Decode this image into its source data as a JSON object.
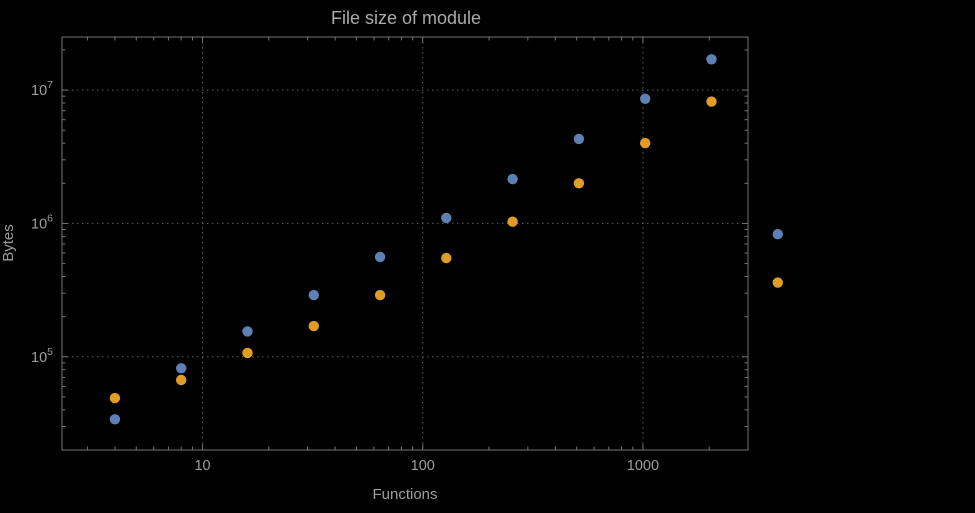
{
  "chart_data": {
    "type": "scatter",
    "title": "File size of module",
    "xlabel": "Functions",
    "ylabel": "Bytes",
    "x_scale": "log",
    "y_scale": "log",
    "xlim": [
      2.3,
      3000
    ],
    "ylim": [
      20000,
      25000000
    ],
    "grid": "dotted",
    "legend": "none",
    "colors": {
      "grid": "#5f5f5f",
      "frame": "#747474",
      "text": "#9e9e9e",
      "background": "#000000",
      "series_blue": "#5E81B5",
      "series_orange": "#E19C24"
    },
    "x_ticks": [
      {
        "value": 10,
        "label": "10"
      },
      {
        "value": 100,
        "label": "100"
      },
      {
        "value": 1000,
        "label": "1000"
      }
    ],
    "y_ticks": [
      {
        "value": 100000,
        "mantissa": "10",
        "exponent": "5"
      },
      {
        "value": 1000000,
        "mantissa": "10",
        "exponent": "6"
      },
      {
        "value": 10000000,
        "mantissa": "10",
        "exponent": "7"
      }
    ],
    "x": [
      4,
      8,
      16,
      32,
      64,
      128,
      256,
      512,
      1024,
      2048,
      4096
    ],
    "series": [
      {
        "name": "blue",
        "color": "#5E81B5",
        "values": [
          34000,
          82000,
          155000,
          290000,
          560000,
          1100000,
          2150000,
          4300000,
          8600000,
          17000000,
          830000
        ]
      },
      {
        "name": "orange",
        "color": "#E19C24",
        "values": [
          49000,
          67000,
          107000,
          170000,
          290000,
          550000,
          1030000,
          2000000,
          4000000,
          8200000,
          360000
        ]
      }
    ]
  }
}
